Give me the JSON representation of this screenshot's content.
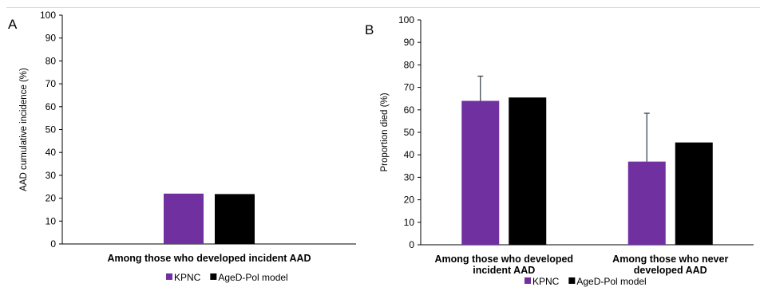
{
  "chart_data": [
    {
      "type": "bar",
      "panel_label": "A",
      "ylabel": "AAD cumulative incidence (%)",
      "ylim": [
        0,
        100
      ],
      "yticks": [
        0,
        10,
        20,
        30,
        40,
        50,
        60,
        70,
        80,
        90,
        100
      ],
      "categories": [
        [
          "Among those who developed incident AAD"
        ]
      ],
      "series": [
        {
          "name": "KPNC",
          "color": "#7030a0",
          "values": [
            22
          ],
          "error_upper": [
            null
          ]
        },
        {
          "name": "AgeD-Pol model",
          "color": "#000000",
          "values": [
            21.8
          ],
          "error_upper": [
            null
          ]
        }
      ],
      "grid": false,
      "legend_position": "bottom"
    },
    {
      "type": "bar",
      "panel_label": "B",
      "ylabel": "Proportion died (%)",
      "ylim": [
        0,
        100
      ],
      "yticks": [
        0,
        10,
        20,
        30,
        40,
        50,
        60,
        70,
        80,
        90,
        100
      ],
      "categories": [
        [
          "Among those who developed",
          "incident AAD"
        ],
        [
          "Among those who never",
          "developed AAD"
        ]
      ],
      "series": [
        {
          "name": "KPNC",
          "color": "#7030a0",
          "values": [
            64,
            37
          ],
          "error_upper": [
            75,
            58.5
          ]
        },
        {
          "name": "AgeD-Pol model",
          "color": "#000000",
          "values": [
            65.5,
            45.5
          ],
          "error_upper": [
            null,
            null
          ]
        }
      ],
      "grid": false,
      "legend_position": "bottom"
    }
  ]
}
